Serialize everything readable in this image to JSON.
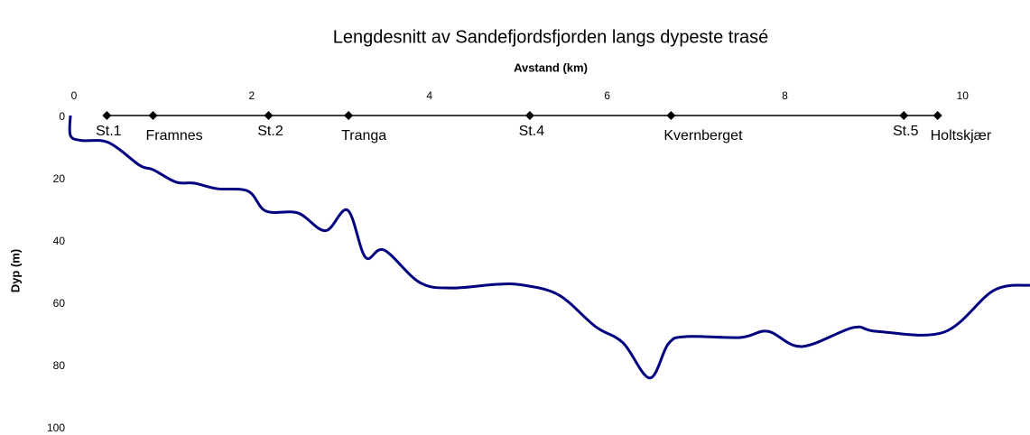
{
  "chart_data": {
    "type": "line",
    "title": "Lengdesnitt av Sandefjordsfjorden langs dypeste trasé",
    "x_label": "Avstand (km)",
    "y_label": "Dyp (m)",
    "xlim": [
      0,
      10.8
    ],
    "xticks": [
      0,
      2,
      4,
      6,
      8,
      10
    ],
    "ylim": [
      0,
      100
    ],
    "yticks": [
      0,
      20,
      40,
      60,
      80,
      100
    ],
    "y_inverted": true,
    "series": [
      {
        "color": "#000080",
        "x": [
          0,
          0,
          0.12,
          0.43,
          0.78,
          0.93,
          1.19,
          1.39,
          1.65,
          2.0,
          2.2,
          2.56,
          2.87,
          3.12,
          3.32,
          3.53,
          3.93,
          4.29,
          4.8,
          5.1,
          5.5,
          5.91,
          6.22,
          6.52,
          6.73,
          6.93,
          7.54,
          7.85,
          8.23,
          8.81,
          9.07,
          9.83,
          10.39,
          10.8
        ],
        "values": [
          0,
          6.4,
          8,
          8.7,
          16,
          17.4,
          21.4,
          21.7,
          23.5,
          24.3,
          30.7,
          31.3,
          37,
          30.4,
          45.5,
          43.2,
          53.6,
          55.4,
          54.2,
          54.5,
          57.7,
          67.8,
          73,
          84.3,
          73.3,
          71,
          71.3,
          69.3,
          74.2,
          68.1,
          69.3,
          69.6,
          56.2,
          54.5
        ]
      }
    ],
    "stations": {
      "color": "#000000",
      "labels": [
        "St.1",
        "Framnes",
        "St.2",
        "Tranga",
        "St.4",
        "Kvernberget",
        "St.5",
        "Holtskjær"
      ],
      "x": [
        0.41,
        0.93,
        2.23,
        3.13,
        5.17,
        6.76,
        9.38,
        9.76
      ],
      "values": [
        0,
        0,
        0,
        0,
        0,
        0,
        0,
        0
      ]
    }
  }
}
